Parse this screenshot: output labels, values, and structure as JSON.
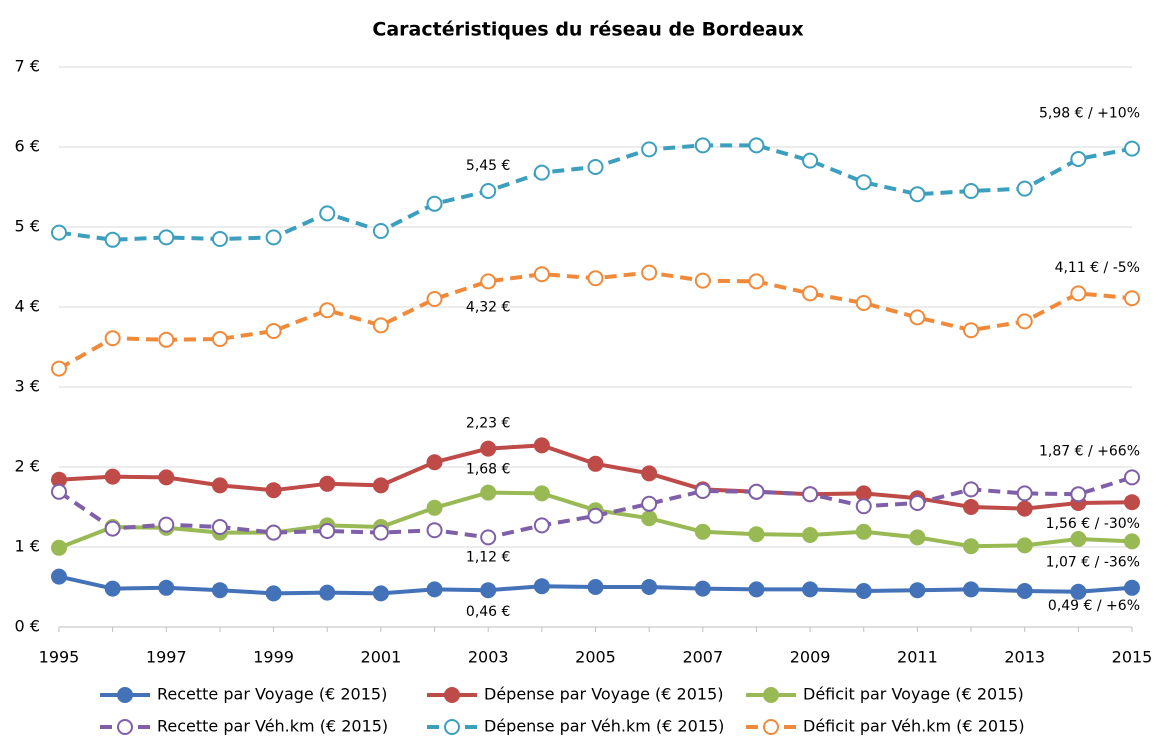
{
  "chart_data": {
    "type": "line",
    "title": "Caractéristiques du réseau de Bordeaux",
    "x": [
      1995,
      1996,
      1997,
      1998,
      1999,
      2000,
      2001,
      2002,
      2003,
      2004,
      2005,
      2006,
      2007,
      2008,
      2009,
      2010,
      2011,
      2012,
      2013,
      2014,
      2015
    ],
    "xlim": [
      1995,
      2015
    ],
    "xticks": [
      1995,
      1997,
      1999,
      2001,
      2003,
      2005,
      2007,
      2009,
      2011,
      2013,
      2015
    ],
    "ylim": [
      0,
      7
    ],
    "yticks": [
      {
        "value": 0,
        "label": "0 €"
      },
      {
        "value": 1,
        "label": "1 €"
      },
      {
        "value": 2,
        "label": "2 €"
      },
      {
        "value": 3,
        "label": "3 €"
      },
      {
        "value": 4,
        "label": "4 €"
      },
      {
        "value": 5,
        "label": "5 €"
      },
      {
        "value": 6,
        "label": "6 €"
      },
      {
        "value": 7,
        "label": "7 €"
      }
    ],
    "grid": true,
    "legend": "bottom",
    "series": [
      {
        "name": "Recette par Voyage (€ 2015)",
        "color": "#4372b8",
        "line_style": "solid",
        "marker": "filled",
        "values": [
          0.63,
          0.48,
          0.49,
          0.46,
          0.42,
          0.43,
          0.42,
          0.47,
          0.46,
          0.51,
          0.5,
          0.5,
          0.48,
          0.47,
          0.47,
          0.45,
          0.46,
          0.47,
          0.45,
          0.44,
          0.49
        ],
        "value_labels": [
          null,
          null,
          null,
          null,
          null,
          null,
          null,
          null,
          "0,46 €",
          null,
          null,
          null,
          null,
          null,
          null,
          null,
          null,
          null,
          null,
          null,
          "0,49 € / +6%"
        ]
      },
      {
        "name": "Dépense par Voyage (€ 2015)",
        "color": "#be4b48",
        "line_style": "solid",
        "marker": "filled",
        "values": [
          1.84,
          1.88,
          1.87,
          1.77,
          1.71,
          1.79,
          1.77,
          2.06,
          2.23,
          2.27,
          2.04,
          1.92,
          1.72,
          1.69,
          1.66,
          1.67,
          1.61,
          1.5,
          1.48,
          1.55,
          1.56
        ],
        "value_labels": [
          null,
          null,
          null,
          null,
          null,
          null,
          null,
          null,
          "2,23 €",
          null,
          null,
          null,
          null,
          null,
          null,
          null,
          null,
          null,
          null,
          null,
          "1,56 € / -30%"
        ]
      },
      {
        "name": "Déficit par Voyage (€ 2015)",
        "color": "#98b954",
        "line_style": "solid",
        "marker": "filled",
        "values": [
          0.99,
          1.25,
          1.24,
          1.18,
          1.18,
          1.27,
          1.25,
          1.49,
          1.68,
          1.67,
          1.46,
          1.36,
          1.19,
          1.16,
          1.15,
          1.19,
          1.12,
          1.01,
          1.02,
          1.1,
          1.07
        ],
        "value_labels": [
          null,
          null,
          null,
          null,
          null,
          null,
          null,
          null,
          "1,68 €",
          null,
          null,
          null,
          null,
          null,
          null,
          null,
          null,
          null,
          null,
          null,
          "1,07 € / -36%"
        ]
      },
      {
        "name": "Recette par Véh.km (€ 2015)",
        "color": "#7f5fa8",
        "line_style": "dashed",
        "marker": "open",
        "values": [
          1.69,
          1.23,
          1.28,
          1.25,
          1.18,
          1.2,
          1.18,
          1.21,
          1.12,
          1.27,
          1.39,
          1.54,
          1.7,
          1.69,
          1.66,
          1.51,
          1.55,
          1.72,
          1.67,
          1.66,
          1.87
        ],
        "value_labels": [
          null,
          null,
          null,
          null,
          null,
          null,
          null,
          null,
          "1,12 €",
          null,
          null,
          null,
          null,
          null,
          null,
          null,
          null,
          null,
          null,
          null,
          "1,87 € / +66%"
        ]
      },
      {
        "name": "Dépense par Véh.km (€ 2015)",
        "color": "#3c9fbe",
        "line_style": "dashed",
        "marker": "open",
        "values": [
          4.93,
          4.84,
          4.87,
          4.85,
          4.87,
          5.17,
          4.95,
          5.29,
          5.45,
          5.68,
          5.75,
          5.97,
          6.02,
          6.02,
          5.83,
          5.56,
          5.41,
          5.45,
          5.48,
          5.85,
          5.98
        ],
        "value_labels": [
          null,
          null,
          null,
          null,
          null,
          null,
          null,
          null,
          "5,45 €",
          null,
          null,
          null,
          null,
          null,
          null,
          null,
          null,
          null,
          null,
          null,
          "5,98 € / +10%"
        ]
      },
      {
        "name": "Déficit par Véh.km (€ 2015)",
        "color": "#f08a3a",
        "line_style": "dashed",
        "marker": "open",
        "values": [
          3.23,
          3.61,
          3.59,
          3.6,
          3.7,
          3.96,
          3.77,
          4.1,
          4.32,
          4.41,
          4.36,
          4.43,
          4.33,
          4.32,
          4.17,
          4.05,
          3.87,
          3.71,
          3.82,
          4.17,
          4.11
        ],
        "value_labels": [
          null,
          null,
          null,
          null,
          null,
          null,
          null,
          null,
          "4,32 €",
          null,
          null,
          null,
          null,
          null,
          null,
          null,
          null,
          null,
          null,
          null,
          "4,11 € / -5%"
        ]
      }
    ]
  }
}
